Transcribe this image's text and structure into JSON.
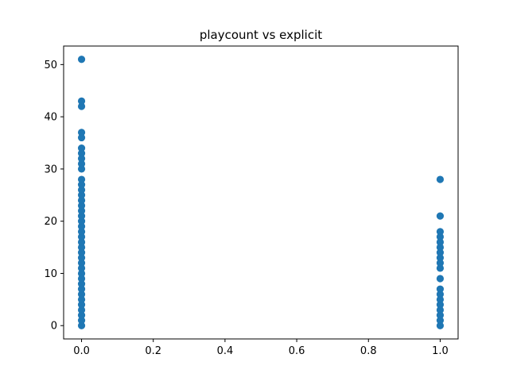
{
  "chart_data": {
    "type": "scatter",
    "title": "playcount vs explicit",
    "xlabel": "",
    "ylabel": "",
    "xlim": [
      -0.05,
      1.05
    ],
    "ylim": [
      -2.55,
      53.55
    ],
    "xticks": [
      0.0,
      0.2,
      0.4,
      0.6,
      0.8,
      1.0
    ],
    "xtick_labels": [
      "0.0",
      "0.2",
      "0.4",
      "0.6",
      "0.8",
      "1.0"
    ],
    "yticks": [
      0,
      10,
      20,
      30,
      40,
      50
    ],
    "ytick_labels": [
      "0",
      "10",
      "20",
      "30",
      "40",
      "50"
    ],
    "grid": false,
    "marker_color": "#1f77b4",
    "series": [
      {
        "x_value": 0,
        "y": [
          0,
          1,
          2,
          3,
          4,
          5,
          6,
          7,
          8,
          9,
          10,
          11,
          12,
          13,
          14,
          15,
          16,
          17,
          18,
          19,
          20,
          21,
          22,
          23,
          24,
          25,
          26,
          27,
          28,
          30,
          31,
          32,
          33,
          34,
          36,
          37,
          42,
          43,
          51
        ]
      },
      {
        "x_value": 1,
        "y": [
          0,
          1,
          2,
          3,
          4,
          5,
          6,
          7,
          9,
          11,
          12,
          13,
          14,
          15,
          16,
          17,
          18,
          21,
          28
        ]
      }
    ]
  }
}
